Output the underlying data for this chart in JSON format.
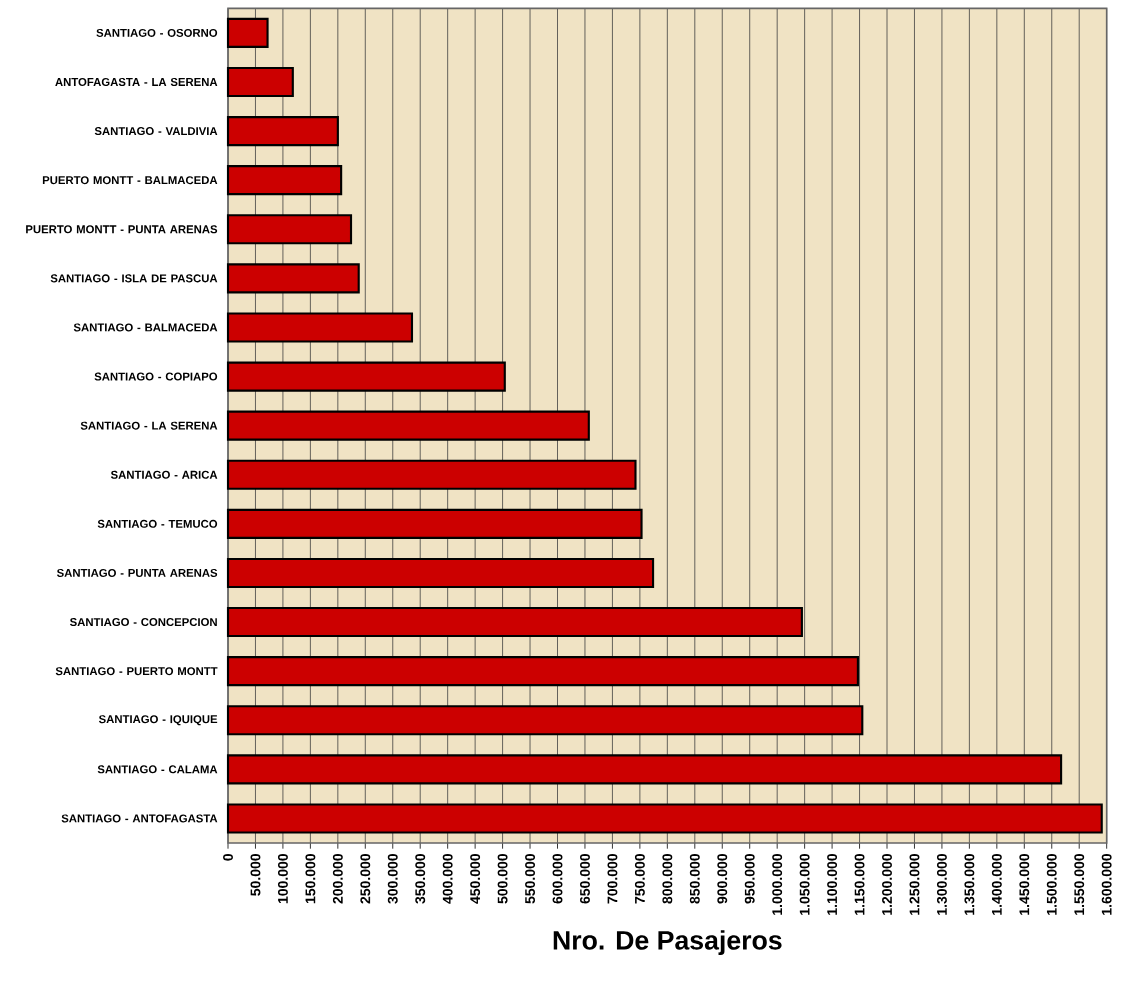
{
  "chart_data": {
    "type": "bar",
    "orientation": "horizontal",
    "categories": [
      "SANTIAGO - OSORNO",
      "ANTOFAGASTA - LA SERENA",
      "SANTIAGO - VALDIVIA",
      "PUERTO MONTT - BALMACEDA",
      "PUERTO MONTT - PUNTA ARENAS",
      "SANTIAGO - ISLA DE PASCUA",
      "SANTIAGO - BALMACEDA",
      "SANTIAGO - COPIAPO",
      "SANTIAGO - LA SERENA",
      "SANTIAGO - ARICA",
      "SANTIAGO - TEMUCO",
      "SANTIAGO - PUNTA ARENAS",
      "SANTIAGO - CONCEPCION",
      "SANTIAGO - PUERTO MONTT",
      "SANTIAGO - IQUIQUE",
      "SANTIAGO - CALAMA",
      "SANTIAGO - ANTOFAGASTA"
    ],
    "values": [
      72000,
      118000,
      200000,
      206000,
      224000,
      238000,
      335000,
      504000,
      657000,
      742000,
      753000,
      774000,
      1045000,
      1147000,
      1155000,
      1517000,
      1591000
    ],
    "color": "#cc0000",
    "xlabel": "Nro. De Pasajeros",
    "xlim": [
      0,
      1600000
    ],
    "xticks": [
      0,
      {
        "value": 50000,
        "label": "50.000"
      },
      {
        "value": 100000,
        "label": "100.000"
      },
      {
        "value": 150000,
        "label": "150.000"
      },
      {
        "value": 200000,
        "label": "200.000"
      },
      {
        "value": 250000,
        "label": "250.000"
      },
      {
        "value": 300000,
        "label": "300.000"
      },
      {
        "value": 350000,
        "label": "350.000"
      },
      {
        "value": 400000,
        "label": "400.000"
      },
      {
        "value": 450000,
        "label": "450.000"
      },
      {
        "value": 500000,
        "label": "500.000"
      },
      {
        "value": 550000,
        "label": "550.000"
      },
      {
        "value": 600000,
        "label": "600.000"
      },
      {
        "value": 650000,
        "label": "650.000"
      },
      {
        "value": 700000,
        "label": "700.000"
      },
      {
        "value": 750000,
        "label": "750.000"
      },
      {
        "value": 800000,
        "label": "800.000"
      },
      {
        "value": 850000,
        "label": "850.000"
      },
      {
        "value": 900000,
        "label": "900.000"
      },
      {
        "value": 950000,
        "label": "950.000"
      },
      {
        "value": 1000000,
        "label": "1.000.000"
      },
      {
        "value": 1050000,
        "label": "1.050.000"
      },
      {
        "value": 1100000,
        "label": "1.100.000"
      },
      {
        "value": 1150000,
        "label": "1.150.000"
      },
      {
        "value": 1200000,
        "label": "1.200.000"
      },
      {
        "value": 1250000,
        "label": "1.250.000"
      },
      {
        "value": 1300000,
        "label": "1.300.000"
      },
      {
        "value": 1350000,
        "label": "1.350.000"
      },
      {
        "value": 1400000,
        "label": "1.400.000"
      },
      {
        "value": 1450000,
        "label": "1.450.000"
      },
      {
        "value": 1500000,
        "label": "1.500.000"
      },
      {
        "value": 1550000,
        "label": "1.550.000"
      },
      {
        "value": 1600000,
        "label": "1.600.000"
      }
    ],
    "grid": "x"
  }
}
